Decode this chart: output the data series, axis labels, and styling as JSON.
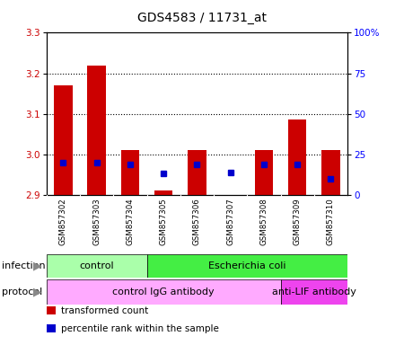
{
  "title": "GDS4583 / 11731_at",
  "samples": [
    "GSM857302",
    "GSM857303",
    "GSM857304",
    "GSM857305",
    "GSM857306",
    "GSM857307",
    "GSM857308",
    "GSM857309",
    "GSM857310"
  ],
  "transformed_counts": [
    3.17,
    3.22,
    3.01,
    2.91,
    3.01,
    2.9,
    3.01,
    3.085,
    3.01
  ],
  "percentile_ranks": [
    20,
    20,
    19,
    13,
    19,
    14,
    19,
    19,
    10
  ],
  "ymin": 2.9,
  "ymax": 3.3,
  "y2min": 0,
  "y2max": 100,
  "yticks": [
    2.9,
    3.0,
    3.1,
    3.2,
    3.3
  ],
  "y2ticks": [
    0,
    25,
    50,
    75,
    100
  ],
  "y2ticklabels": [
    "0",
    "25",
    "50",
    "75",
    "100%"
  ],
  "bar_color": "#cc0000",
  "dot_color": "#0000cc",
  "bar_width": 0.55,
  "infection_groups": [
    {
      "label": "control",
      "start": 0,
      "end": 3,
      "color": "#aaffaa"
    },
    {
      "label": "Escherichia coli",
      "start": 3,
      "end": 9,
      "color": "#44ee44"
    }
  ],
  "protocol_groups": [
    {
      "label": "control IgG antibody",
      "start": 0,
      "end": 7,
      "color": "#ffaaff"
    },
    {
      "label": "anti-LIF antibody",
      "start": 7,
      "end": 9,
      "color": "#ee44ee"
    }
  ],
  "infection_label": "infection",
  "protocol_label": "protocol",
  "legend_items": [
    {
      "color": "#cc0000",
      "label": "transformed count"
    },
    {
      "color": "#0000cc",
      "label": "percentile rank within the sample"
    }
  ],
  "sample_bg_color": "#cccccc",
  "title_fontsize": 10,
  "tick_fontsize": 7.5,
  "label_fontsize": 8,
  "legend_fontsize": 7.5
}
